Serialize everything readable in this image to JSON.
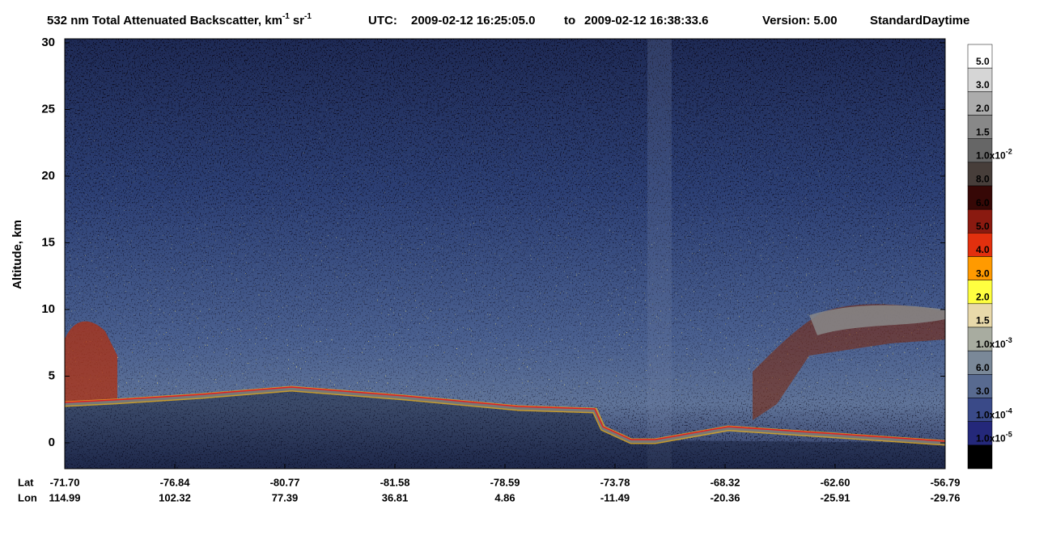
{
  "chart_data": {
    "type": "curtain",
    "title": {
      "main": "532 nm Total Attenuated Backscatter, km",
      "main_exp": "-1",
      "unit": "sr",
      "unit_exp": "-1",
      "utc": "UTC:",
      "start": "2009-02-12 16:25:05.0",
      "to": "to",
      "end": "2009-02-12 16:38:33.6",
      "version": "Version: 5.00",
      "product": "Standard",
      "daytime": "Daytime"
    },
    "y_label": "Altitude, km",
    "ylim": [
      -1.94,
      30.3
    ],
    "yticks": [
      0,
      5,
      10,
      15,
      20,
      25,
      30
    ],
    "x_rows": [
      {
        "name": "Lat",
        "labels": [
          "-71.70",
          "-76.84",
          "-80.77",
          "-81.58",
          "-78.59",
          "-73.78",
          "-68.32",
          "-62.60",
          "-56.79"
        ]
      },
      {
        "name": "Lon",
        "labels": [
          "114.99",
          "102.32",
          "77.39",
          "36.81",
          "4.86",
          "-11.49",
          "-20.36",
          "-25.91",
          "-29.76"
        ]
      }
    ],
    "colorbar": {
      "colors": [
        "#ffffff",
        "#d6d6d6",
        "#acacac",
        "#888888",
        "#666666",
        "#473e3a",
        "#360806",
        "#8a1a10",
        "#e2300e",
        "#ff9a00",
        "#ffff40",
        "#e8d9aa",
        "#a8aca0",
        "#7a8898",
        "#586a90",
        "#3a4a88",
        "#24287a",
        "#000000"
      ],
      "labels": [
        {
          "text": "5.0"
        },
        {
          "text": "3.0"
        },
        {
          "text": "2.0"
        },
        {
          "text": "1.5"
        },
        {
          "text": "1.0x10",
          "exp": "-2"
        },
        {
          "text": "8.0"
        },
        {
          "text": "6.0"
        },
        {
          "text": "5.0"
        },
        {
          "text": "4.0"
        },
        {
          "text": "3.0"
        },
        {
          "text": "2.0"
        },
        {
          "text": "1.5"
        },
        {
          "text": "1.0x10",
          "exp": "-3"
        },
        {
          "text": "6.0"
        },
        {
          "text": "3.0"
        },
        {
          "text": "1.0x10",
          "exp": "-4"
        },
        {
          "text": "1.0x10",
          "exp": "-5"
        }
      ]
    }
  }
}
